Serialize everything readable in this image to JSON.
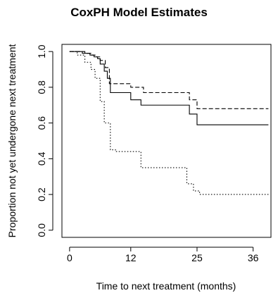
{
  "chart_data": {
    "type": "line",
    "title": "CoxPH Model Estimates",
    "xlabel": "Time to next treatment (months)",
    "ylabel": "Proportion not yet undergone next treatment",
    "xlim": [
      -1.5,
      39.5
    ],
    "ylim": [
      -0.04,
      1.04
    ],
    "x_ticks": [
      0,
      12,
      25,
      36
    ],
    "y_ticks": [
      0.0,
      0.2,
      0.4,
      0.6,
      0.8,
      1.0
    ],
    "y_tick_labels": [
      "0.0",
      "0.2",
      "0.4",
      "0.6",
      "0.8",
      "1.0"
    ],
    "grid": false,
    "series": [
      {
        "line_style": "solid",
        "step": true,
        "x": [
          0,
          3,
          4,
          4.8,
          5.5,
          6,
          6.8,
          7.4,
          8,
          12,
          14,
          23.5,
          25,
          39
        ],
        "y": [
          1.0,
          0.99,
          0.98,
          0.97,
          0.96,
          0.93,
          0.89,
          0.85,
          0.77,
          0.73,
          0.7,
          0.65,
          0.59,
          0.59
        ]
      },
      {
        "line_style": "dashed",
        "step": true,
        "x": [
          0,
          2.5,
          4.2,
          5,
          6,
          7,
          7.8,
          12,
          14.5,
          23.5,
          25,
          39
        ],
        "y": [
          1.0,
          0.99,
          0.98,
          0.97,
          0.95,
          0.91,
          0.82,
          0.8,
          0.77,
          0.73,
          0.68,
          0.68
        ]
      },
      {
        "line_style": "dotted",
        "step": true,
        "x": [
          0,
          1.5,
          3,
          4.2,
          5,
          6,
          6.8,
          8,
          9,
          14,
          23,
          24.3,
          25.5,
          39
        ],
        "y": [
          1.0,
          0.98,
          0.94,
          0.9,
          0.85,
          0.72,
          0.6,
          0.45,
          0.44,
          0.35,
          0.26,
          0.22,
          0.2,
          0.2
        ]
      }
    ]
  }
}
